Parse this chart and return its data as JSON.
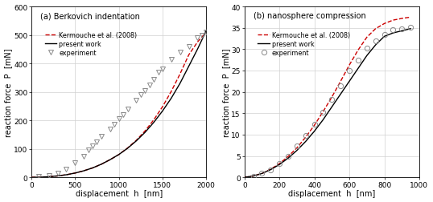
{
  "panel_a": {
    "title": "(a) Berkovich indentation",
    "xlabel": "displacement  h  [nm]",
    "ylabel": "reaction force  P  [mN]",
    "xlim": [
      0,
      2000
    ],
    "ylim": [
      0,
      600
    ],
    "xticks": [
      0,
      500,
      1000,
      1500,
      2000
    ],
    "yticks": [
      0,
      100,
      200,
      300,
      400,
      500,
      600
    ],
    "present_work_x": [
      0,
      100,
      200,
      300,
      400,
      500,
      600,
      700,
      800,
      900,
      1000,
      1100,
      1200,
      1300,
      1400,
      1500,
      1600,
      1700,
      1800,
      1900,
      2000
    ],
    "present_work_y": [
      0,
      0.5,
      2.0,
      5.0,
      9.0,
      15.0,
      23.0,
      33.0,
      46.0,
      62.0,
      80.0,
      102.0,
      128.0,
      158.0,
      193.0,
      233.0,
      278.0,
      330.0,
      390.0,
      450.0,
      515.0
    ],
    "kermouche_x": [
      0,
      100,
      200,
      300,
      400,
      500,
      600,
      700,
      800,
      900,
      1000,
      1100,
      1200,
      1300,
      1400,
      1500,
      1600,
      1700,
      1800,
      1900,
      2000
    ],
    "kermouche_y": [
      0,
      0.5,
      2.0,
      5.0,
      9.0,
      15.0,
      23.0,
      33.0,
      46.0,
      62.0,
      80.0,
      103.0,
      130.0,
      163.0,
      202.0,
      248.0,
      302.0,
      363.0,
      430.0,
      475.0,
      510.0
    ],
    "exp_x": [
      80,
      200,
      300,
      400,
      500,
      600,
      650,
      700,
      750,
      800,
      900,
      950,
      1000,
      1050,
      1100,
      1200,
      1250,
      1300,
      1350,
      1400,
      1450,
      1500,
      1600,
      1700,
      1800,
      1900,
      1950,
      2000
    ],
    "exp_y": [
      2.0,
      5.0,
      15.0,
      28.0,
      50.0,
      75.0,
      95.0,
      110.0,
      125.0,
      145.0,
      170.0,
      185.0,
      205.0,
      220.0,
      240.0,
      270.0,
      290.0,
      305.0,
      325.0,
      345.0,
      370.0,
      380.0,
      415.0,
      440.0,
      460.0,
      490.0,
      500.0,
      510.0
    ],
    "exp_marker": "v"
  },
  "panel_b": {
    "title": "(b) nanosphere compression",
    "xlabel": "displacement  h  [nm]",
    "ylabel": "reaction force  P  [mN]",
    "xlim": [
      0,
      1000
    ],
    "ylim": [
      0,
      40
    ],
    "xticks": [
      0,
      200,
      400,
      600,
      800,
      1000
    ],
    "yticks": [
      0,
      5,
      10,
      15,
      20,
      25,
      30,
      35,
      40
    ],
    "present_work_x": [
      0,
      50,
      100,
      150,
      200,
      250,
      300,
      350,
      400,
      450,
      500,
      550,
      600,
      650,
      700,
      750,
      800,
      850,
      900,
      950
    ],
    "present_work_y": [
      0,
      0.3,
      0.9,
      1.8,
      3.0,
      4.5,
      6.3,
      8.4,
      10.8,
      13.5,
      16.5,
      19.5,
      22.5,
      25.5,
      28.5,
      31.0,
      33.0,
      33.8,
      34.3,
      34.8
    ],
    "kermouche_x": [
      0,
      50,
      100,
      150,
      200,
      250,
      300,
      350,
      400,
      450,
      500,
      550,
      600,
      650,
      700,
      750,
      800,
      850,
      900,
      950
    ],
    "kermouche_y": [
      0,
      0.3,
      0.9,
      1.9,
      3.2,
      4.9,
      6.9,
      9.4,
      12.2,
      15.4,
      18.8,
      22.5,
      26.3,
      29.8,
      32.8,
      34.8,
      36.0,
      36.8,
      37.2,
      37.5
    ],
    "exp_x": [
      50,
      100,
      150,
      200,
      250,
      300,
      350,
      400,
      450,
      500,
      550,
      600,
      650,
      700,
      750,
      800,
      850,
      900,
      950
    ],
    "exp_y": [
      0.3,
      0.9,
      1.8,
      3.2,
      5.0,
      7.3,
      9.8,
      12.5,
      15.3,
      18.2,
      21.5,
      25.0,
      27.5,
      30.2,
      32.0,
      33.5,
      34.5,
      34.8,
      35.2
    ],
    "exp_marker": "o"
  },
  "legend_kermouche": "Kermouche et al. (2008)",
  "legend_present": "present work",
  "legend_exp": "experiment",
  "line_color_present": "#000000",
  "line_color_kermouche": "#cc0000",
  "grid_color": "#d0d0d0",
  "background_color": "#ffffff"
}
